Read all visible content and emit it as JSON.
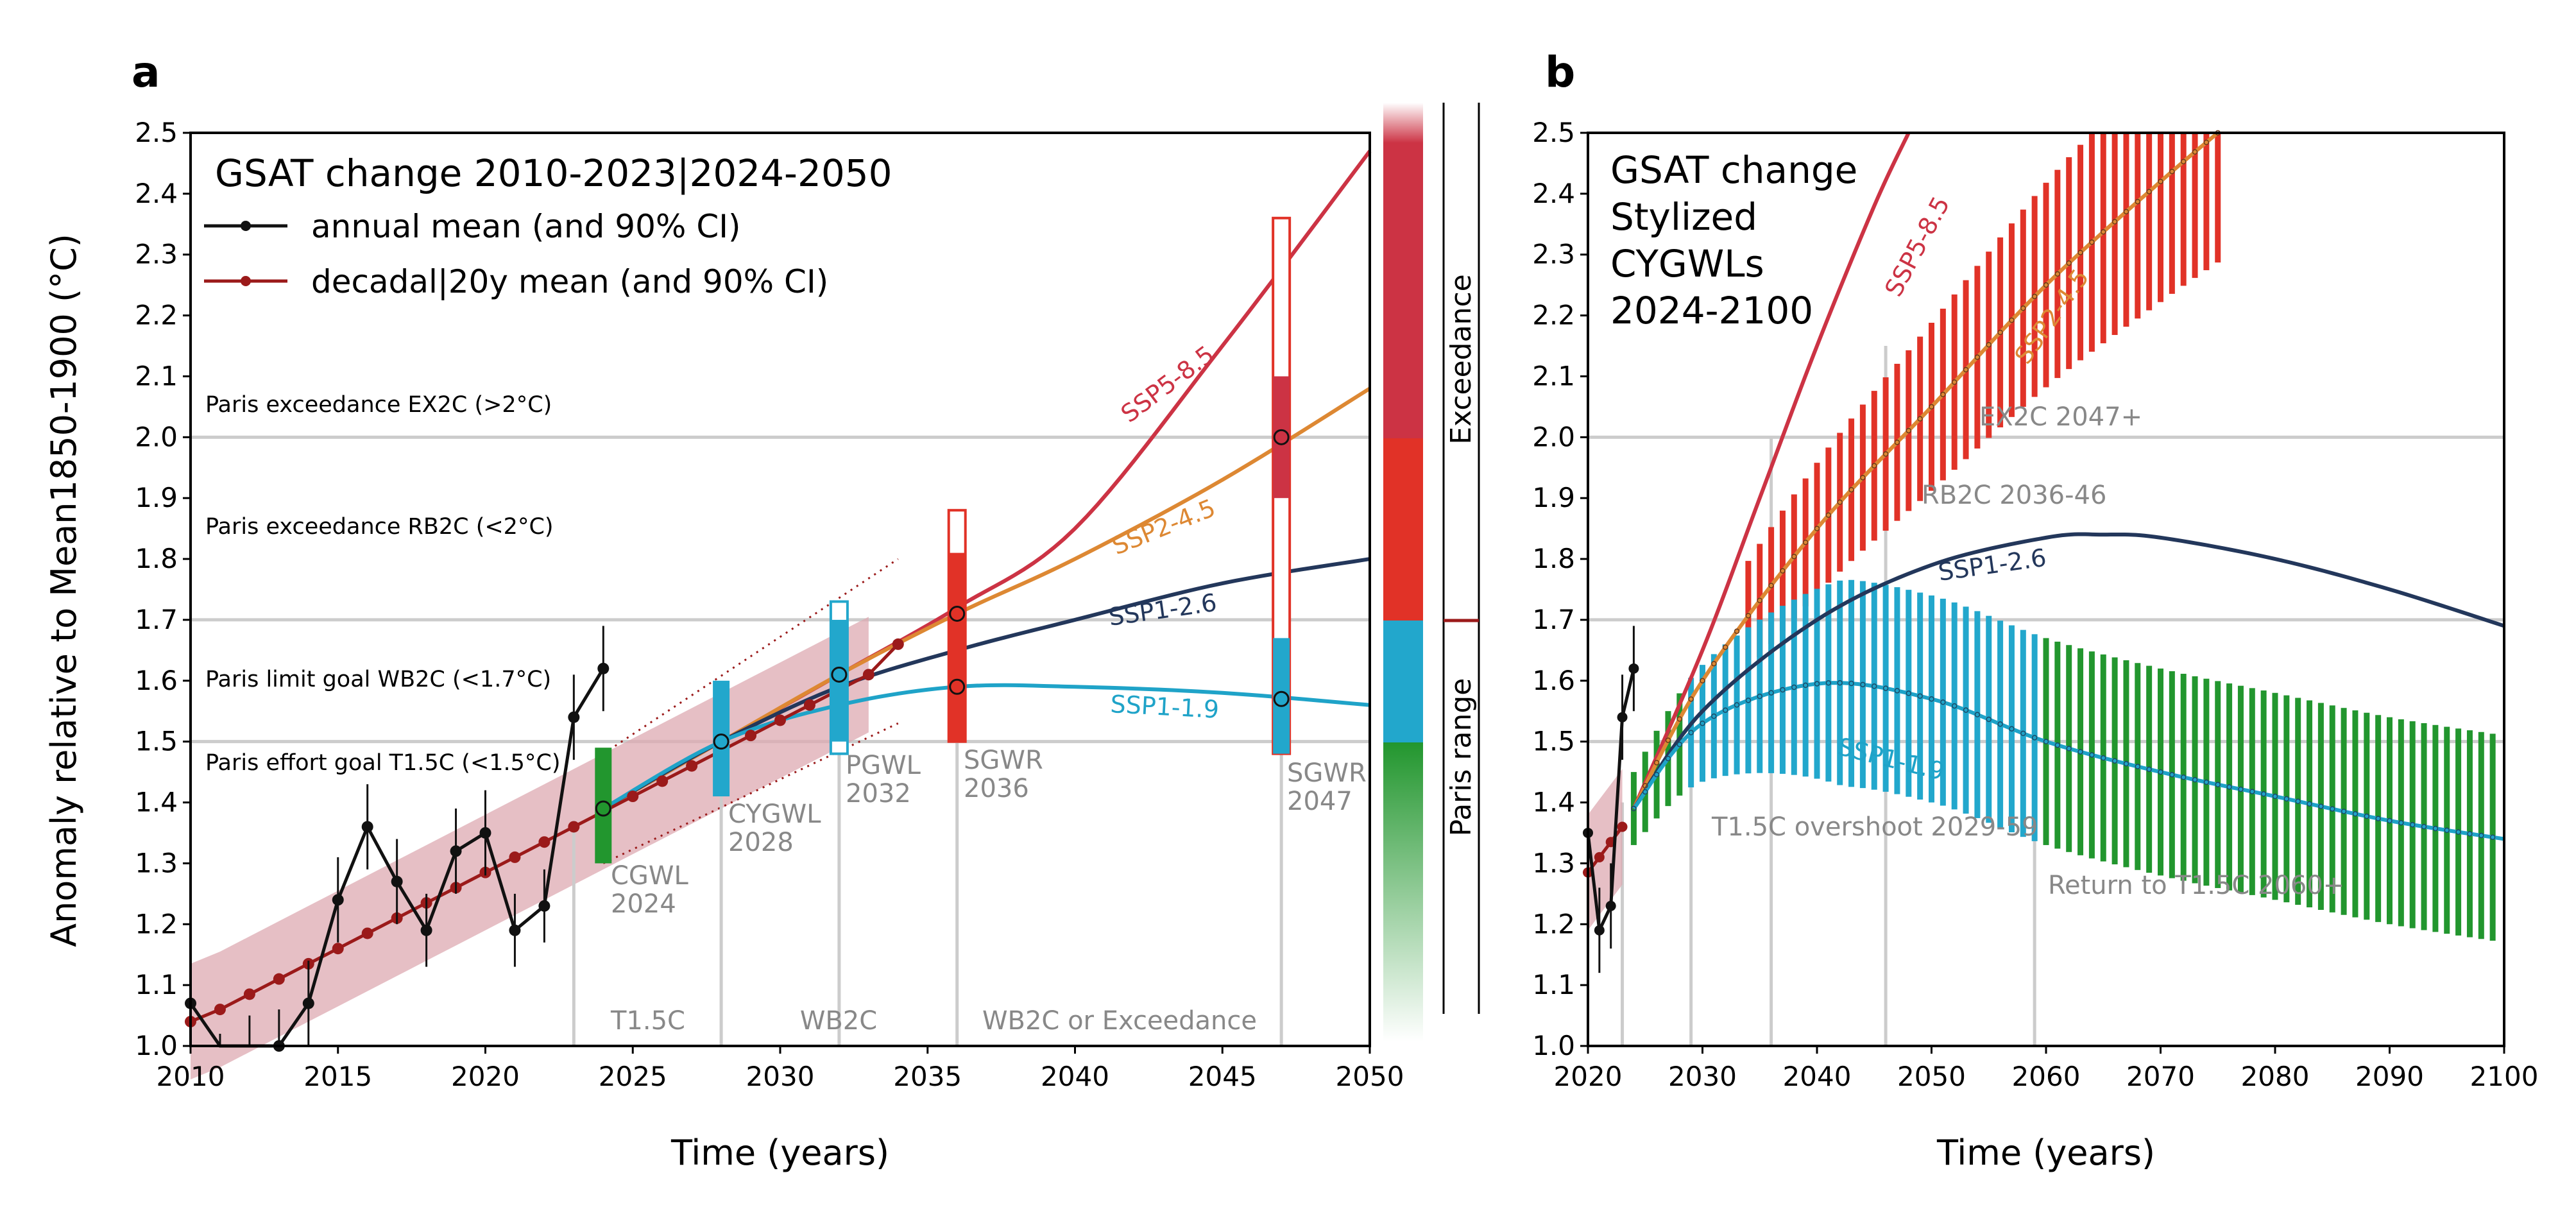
{
  "colors": {
    "ssp585": "#cc3344",
    "ssp245": "#dd8833",
    "ssp126": "#23375b",
    "ssp119": "#1fa3c8",
    "obs": "#111111",
    "decadal": "#9b1a1a",
    "band": "#ddaab1",
    "green": "#22962e",
    "blue": "#22a7cc",
    "red": "#e13227",
    "darkred": "#cc3344",
    "gray": "#cccccc"
  },
  "panel_a": {
    "letter": "a",
    "legend_title": "GSAT change 2010-2023|2024-2050",
    "legend_annual": "annual mean (and 90% CI)",
    "legend_decadal": "decadal|20y mean (and 90% CI)",
    "ylabel": "Anomaly relative to Mean1850-1900 (°C)",
    "xlabel": "Time (years)",
    "y_ticks": [
      "1.0",
      "1.1",
      "1.2",
      "1.3",
      "1.4",
      "1.5",
      "1.6",
      "1.7",
      "1.8",
      "1.9",
      "2.0",
      "2.1",
      "2.2",
      "2.3",
      "2.4",
      "2.5"
    ],
    "x_ticks": [
      "2010",
      "2015",
      "2020",
      "2025",
      "2030",
      "2035",
      "2040",
      "2045",
      "2050"
    ],
    "ref_ex2c": "Paris exceedance EX2C (>2°C)",
    "ref_rb2c": "Paris exceedance RB2C (<2°C)",
    "ref_wb2c": "Paris limit goal WB2C (<1.7°C)",
    "ref_t15c": "Paris effort goal T1.5C (<1.5°C)",
    "ssp585": "SSP5-8.5",
    "ssp245": "SSP2-4.5",
    "ssp126": "SSP1-2.6",
    "ssp119": "SSP1-1.9",
    "cgwl_1": "CGWL",
    "cgwl_2": "2024",
    "cygwl_1": "CYGWL",
    "cygwl_2": "2028",
    "pgwl_1": "PGWL",
    "pgwl_2": "2032",
    "sgwr36_1": "SGWR",
    "sgwr36_2": "2036",
    "sgwr47_1": "SGWR",
    "sgwr47_2": "2047",
    "zone_t15c": "T1.5C",
    "zone_wb2c": "WB2C",
    "zone_exc": "WB2C or Exceedance"
  },
  "colorbar": {
    "exceedance": "Exceedance",
    "paris_range": "Paris range"
  },
  "panel_b": {
    "letter": "b",
    "title_1": "GSAT change",
    "title_2": "Stylized",
    "title_3": "CYGWLs",
    "title_4": "2024-2100",
    "xlabel": "Time (years)",
    "y_ticks": [
      "1.0",
      "1.1",
      "1.2",
      "1.3",
      "1.4",
      "1.5",
      "1.6",
      "1.7",
      "1.8",
      "1.9",
      "2.0",
      "2.1",
      "2.2",
      "2.3",
      "2.4",
      "2.5"
    ],
    "x_ticks": [
      "2020",
      "2030",
      "2040",
      "2050",
      "2060",
      "2070",
      "2080",
      "2090",
      "2100"
    ],
    "ssp585": "SSP5-8.5",
    "ssp245": "SSP2-4.5",
    "ssp126": "SSP1-2.6",
    "ssp119": "SSP1-1.9",
    "ex2c": "EX2C 2047+",
    "rb2c": "RB2C 2036-46",
    "overshoot": "T1.5C overshoot 2029-59",
    "return": "Return to T1.5C 2060+"
  },
  "chart_data": [
    {
      "type": "line",
      "panel": "a",
      "xlabel": "Time (years)",
      "ylabel": "Anomaly relative to Mean1850-1900 (°C)",
      "xlim": [
        2010,
        2050
      ],
      "ylim": [
        1.0,
        2.5
      ],
      "reference_lines": [
        1.5,
        1.7,
        2.0
      ],
      "annual_obs": {
        "x": [
          2010,
          2011,
          2012,
          2013,
          2014,
          2015,
          2016,
          2017,
          2018,
          2019,
          2020,
          2021,
          2022,
          2023,
          2024
        ],
        "y": [
          1.07,
          0.95,
          0.99,
          1.0,
          1.07,
          1.24,
          1.36,
          1.27,
          1.19,
          1.32,
          1.35,
          1.19,
          1.23,
          1.54,
          1.62
        ]
      },
      "decadal_mean": {
        "x": [
          2010,
          2011,
          2012,
          2013,
          2014,
          2015,
          2016,
          2017,
          2018,
          2019,
          2020,
          2021,
          2022,
          2023,
          2024,
          2025,
          2026,
          2027,
          2028,
          2029,
          2030,
          2031,
          2032,
          2033,
          2034
        ],
        "y": [
          1.04,
          1.06,
          1.085,
          1.11,
          1.135,
          1.16,
          1.185,
          1.21,
          1.235,
          1.26,
          1.285,
          1.31,
          1.335,
          1.36,
          1.385,
          1.41,
          1.435,
          1.46,
          1.485,
          1.51,
          1.535,
          1.56,
          1.585,
          1.61,
          1.66
        ]
      },
      "series": [
        {
          "name": "SSP5-8.5",
          "x": [
            2024,
            2028,
            2032,
            2036,
            2040,
            2045,
            2050
          ],
          "y": [
            1.39,
            1.5,
            1.61,
            1.72,
            1.85,
            2.15,
            2.47
          ]
        },
        {
          "name": "SSP2-4.5",
          "x": [
            2024,
            2028,
            2032,
            2036,
            2040,
            2045,
            2050
          ],
          "y": [
            1.39,
            1.5,
            1.61,
            1.71,
            1.8,
            1.93,
            2.08
          ]
        },
        {
          "name": "SSP1-2.6",
          "x": [
            2024,
            2028,
            2032,
            2036,
            2040,
            2045,
            2050
          ],
          "y": [
            1.39,
            1.5,
            1.59,
            1.65,
            1.7,
            1.76,
            1.8
          ]
        },
        {
          "name": "SSP1-1.9",
          "x": [
            2024,
            2028,
            2032,
            2036,
            2040,
            2045,
            2050
          ],
          "y": [
            1.39,
            1.5,
            1.56,
            1.59,
            1.59,
            1.58,
            1.56
          ]
        }
      ],
      "markers": [
        {
          "label": "CGWL 2024",
          "x": 2024,
          "y": 1.39
        },
        {
          "label": "CYGWL 2028",
          "x": 2028,
          "y": 1.5
        },
        {
          "label": "PGWL 2032",
          "x": 2032,
          "y": 1.61
        },
        {
          "label": "SGWR 2036",
          "x": 2036,
          "y": 1.71
        },
        {
          "label": "SGWR 2036",
          "x": 2036,
          "y": 1.59
        },
        {
          "label": "SGWR 2047",
          "x": 2047,
          "y": 2.0
        },
        {
          "label": "SGWR 2047",
          "x": 2047,
          "y": 1.57
        }
      ]
    },
    {
      "type": "line",
      "panel": "b",
      "xlabel": "Time (years)",
      "xlim": [
        2020,
        2100
      ],
      "ylim": [
        1.0,
        2.5
      ],
      "reference_lines": [
        1.5,
        1.7,
        2.0
      ],
      "series": [
        {
          "name": "SSP5-8.5",
          "x": [
            2024,
            2030,
            2035,
            2040,
            2045,
            2048
          ],
          "y": [
            1.39,
            1.65,
            1.9,
            2.15,
            2.38,
            2.5
          ]
        },
        {
          "name": "SSP2-4.5",
          "x": [
            2024,
            2030,
            2040,
            2050,
            2060,
            2070,
            2075
          ],
          "y": [
            1.39,
            1.6,
            1.85,
            2.05,
            2.25,
            2.42,
            2.5
          ]
        },
        {
          "name": "SSP1-2.6",
          "x": [
            2024,
            2030,
            2040,
            2050,
            2060,
            2065,
            2070,
            2080,
            2090,
            2100
          ],
          "y": [
            1.39,
            1.55,
            1.7,
            1.79,
            1.835,
            1.84,
            1.835,
            1.8,
            1.75,
            1.69
          ]
        },
        {
          "name": "SSP1-1.9",
          "x": [
            2024,
            2030,
            2040,
            2050,
            2060,
            2070,
            2080,
            2090,
            2100
          ],
          "y": [
            1.39,
            1.53,
            1.595,
            1.57,
            1.5,
            1.45,
            1.41,
            1.37,
            1.34
          ]
        }
      ]
    }
  ]
}
